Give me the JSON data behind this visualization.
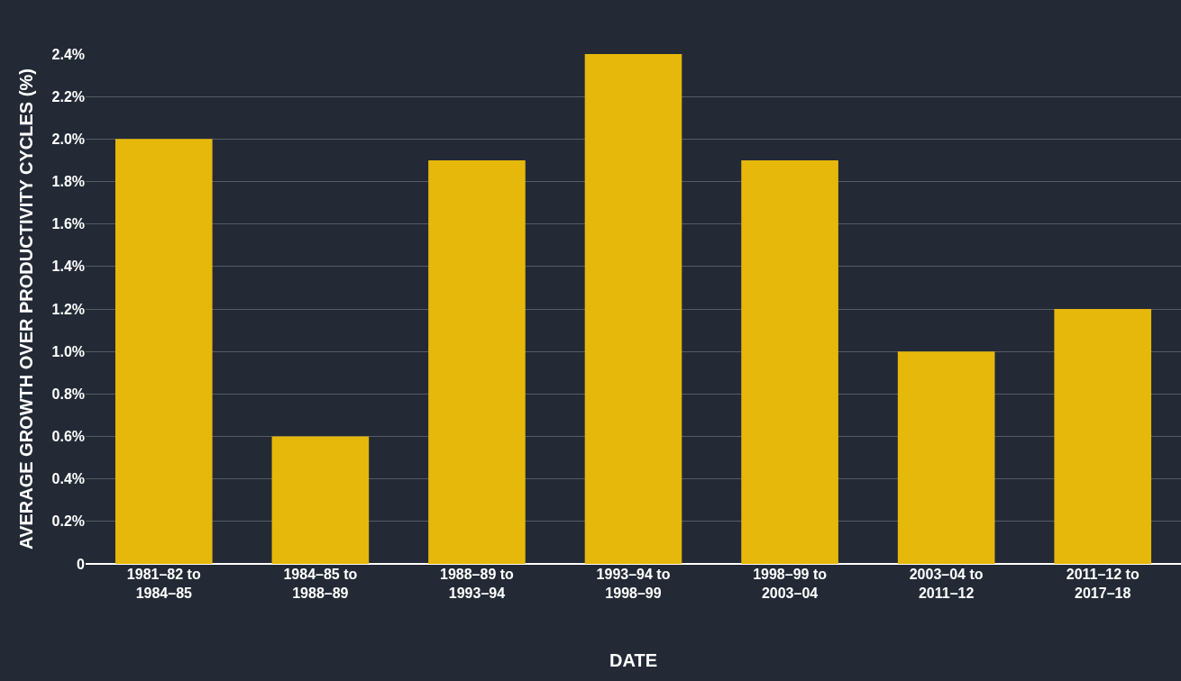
{
  "chart_data": {
    "type": "bar",
    "xlabel": "DATE",
    "ylabel": "AVERAGE GROWTH OVER PRODUCTIVITY CYCLES (%)",
    "categories": [
      "1981–82 to 1984–85",
      "1984–85 to 1988–89",
      "1988–89 to 1993–94",
      "1993–94 to 1998–99",
      "1998–99 to 2003–04",
      "2003–04 to 2011–12",
      "2011–12 to 2017–18"
    ],
    "values": [
      2.0,
      0.6,
      1.9,
      2.4,
      1.9,
      1.0,
      1.2
    ],
    "color": "#e6b80b",
    "ylim": [
      0,
      2.4
    ],
    "yticks": [
      0,
      {
        "value": 0.2,
        "label": "0.2%"
      },
      {
        "value": 0.4,
        "label": "0.4%"
      },
      {
        "value": 0.6,
        "label": "0.6%"
      },
      {
        "value": 0.8,
        "label": "0.8%"
      },
      {
        "value": 1.0,
        "label": "1.0%"
      },
      {
        "value": 1.2,
        "label": "1.2%"
      },
      {
        "value": 1.4,
        "label": "1.4%"
      },
      {
        "value": 1.6,
        "label": "1.6%"
      },
      {
        "value": 1.8,
        "label": "1.8%"
      },
      {
        "value": 2.0,
        "label": "2.0%"
      },
      {
        "value": 2.2,
        "label": "2.2%"
      },
      {
        "value": 2.4,
        "label": "2.4%"
      }
    ],
    "grid": "y",
    "legend": false
  }
}
